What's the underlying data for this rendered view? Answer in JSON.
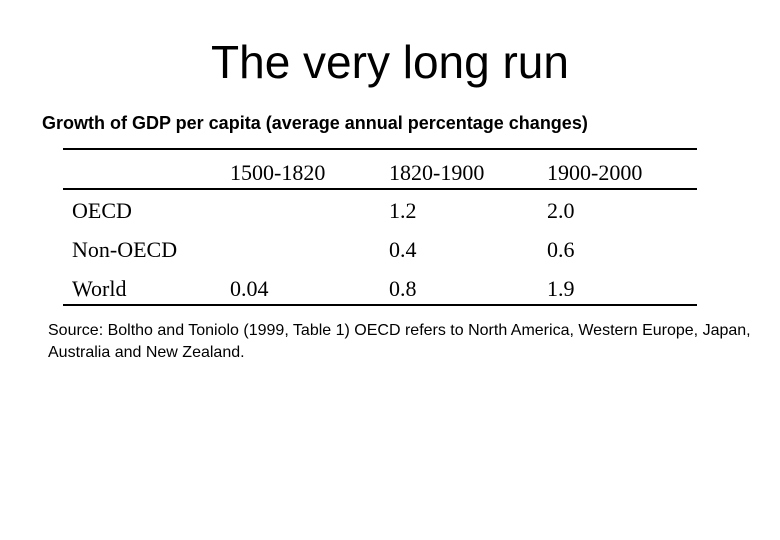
{
  "title": "The very long run",
  "subtitle": "Growth of GDP per capita (average annual percentage changes)",
  "table": {
    "columns": [
      "",
      "1500-1820",
      "1820-1900",
      "1900-2000"
    ],
    "rows": [
      {
        "label": "OECD",
        "values": [
          "",
          "1.2",
          "2.0"
        ]
      },
      {
        "label": "Non-OECD",
        "values": [
          "",
          "0.4",
          "0.6"
        ]
      },
      {
        "label": "World",
        "values": [
          "0.04",
          "0.8",
          "1.9"
        ]
      }
    ]
  },
  "source": "Source: Boltho and Toniolo (1999, Table 1) OECD refers to North America, Western Europe, Japan, Australia and New Zealand."
}
